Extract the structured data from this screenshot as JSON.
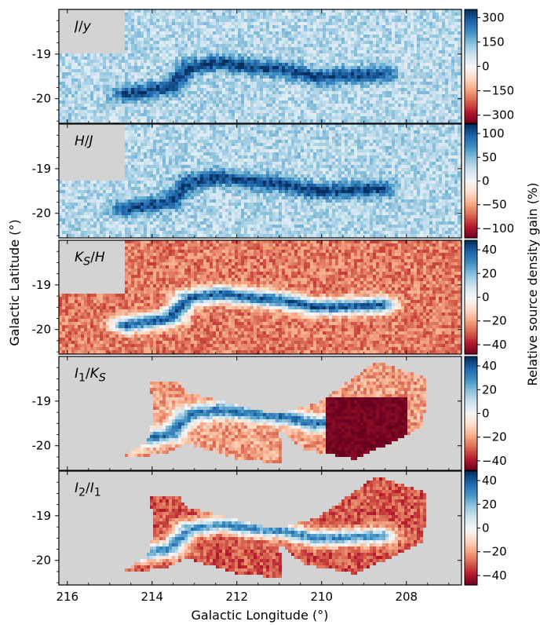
{
  "chart_data": {
    "type": "heatmap",
    "xlabel": "Galactic Longitude (°)",
    "ylabel": "Galactic Latitude (°)",
    "colorbar_label": "Relative source density gain (%)",
    "colormap": "RdBu (red = negative, blue = positive)",
    "x_ticks": [
      216,
      214,
      212,
      210,
      208
    ],
    "xlim": [
      216.2,
      206.7
    ],
    "no_data_color": "#d3d3d3",
    "panels": [
      {
        "label_html": "<i>J</i>/<i>y</i>",
        "y_ticks": [
          "-19",
          "-20"
        ],
        "ylim": [
          -20.55,
          -18.0
        ],
        "cbar_ticks": [
          300,
          150,
          0,
          -150,
          -300
        ],
        "cbar_tick_labels": [
          "300",
          "150",
          "0",
          "−150",
          "−300"
        ],
        "cbar_range": [
          -350,
          350
        ],
        "coverage": "full",
        "background_level": 100,
        "filament_level": 320
      },
      {
        "label_html": "<i>H</i>/<i>J</i>",
        "y_ticks": [
          "-19",
          "-20"
        ],
        "ylim": [
          -20.55,
          -18.0
        ],
        "cbar_ticks": [
          100,
          50,
          0,
          -50,
          -100
        ],
        "cbar_tick_labels": [
          "100",
          "50",
          "0",
          "−50",
          "−100"
        ],
        "cbar_range": [
          -120,
          120
        ],
        "coverage": "full",
        "background_level": 35,
        "filament_level": 110
      },
      {
        "label_html": "<i>K</i><sub><i>S</i></sub>/<i>H</i>",
        "y_ticks": [
          "-19",
          "-20"
        ],
        "ylim": [
          -20.55,
          -18.0
        ],
        "cbar_ticks": [
          40,
          20,
          0,
          -20,
          -40
        ],
        "cbar_tick_labels": [
          "40",
          "20",
          "0",
          "−20",
          "−40"
        ],
        "cbar_range": [
          -48,
          48
        ],
        "coverage": "full",
        "background_level": -25,
        "filament_level": 40
      },
      {
        "label_html": "<i>I</i><sub>1</sub>/<i>K</i><sub><i>S</i></sub>",
        "y_ticks": [
          "-19",
          "-20"
        ],
        "ylim": [
          -20.55,
          -18.0
        ],
        "cbar_ticks": [
          40,
          20,
          0,
          -20,
          -40
        ],
        "cbar_tick_labels": [
          "40",
          "20",
          "0",
          "−20",
          "−40"
        ],
        "cbar_range": [
          -48,
          48
        ],
        "coverage": "irac",
        "background_level": -20,
        "filament_level": 35
      },
      {
        "label_html": "<i>I</i><sub>2</sub>/<i>I</i><sub>1</sub>",
        "y_ticks": [
          "-19",
          "-20"
        ],
        "ylim": [
          -20.55,
          -18.0
        ],
        "cbar_ticks": [
          40,
          20,
          0,
          -20,
          -40
        ],
        "cbar_tick_labels": [
          "40",
          "20",
          "0",
          "−20",
          "−40"
        ],
        "cbar_range": [
          -48,
          48
        ],
        "coverage": "irac",
        "background_level": -30,
        "filament_level": 30
      }
    ]
  }
}
